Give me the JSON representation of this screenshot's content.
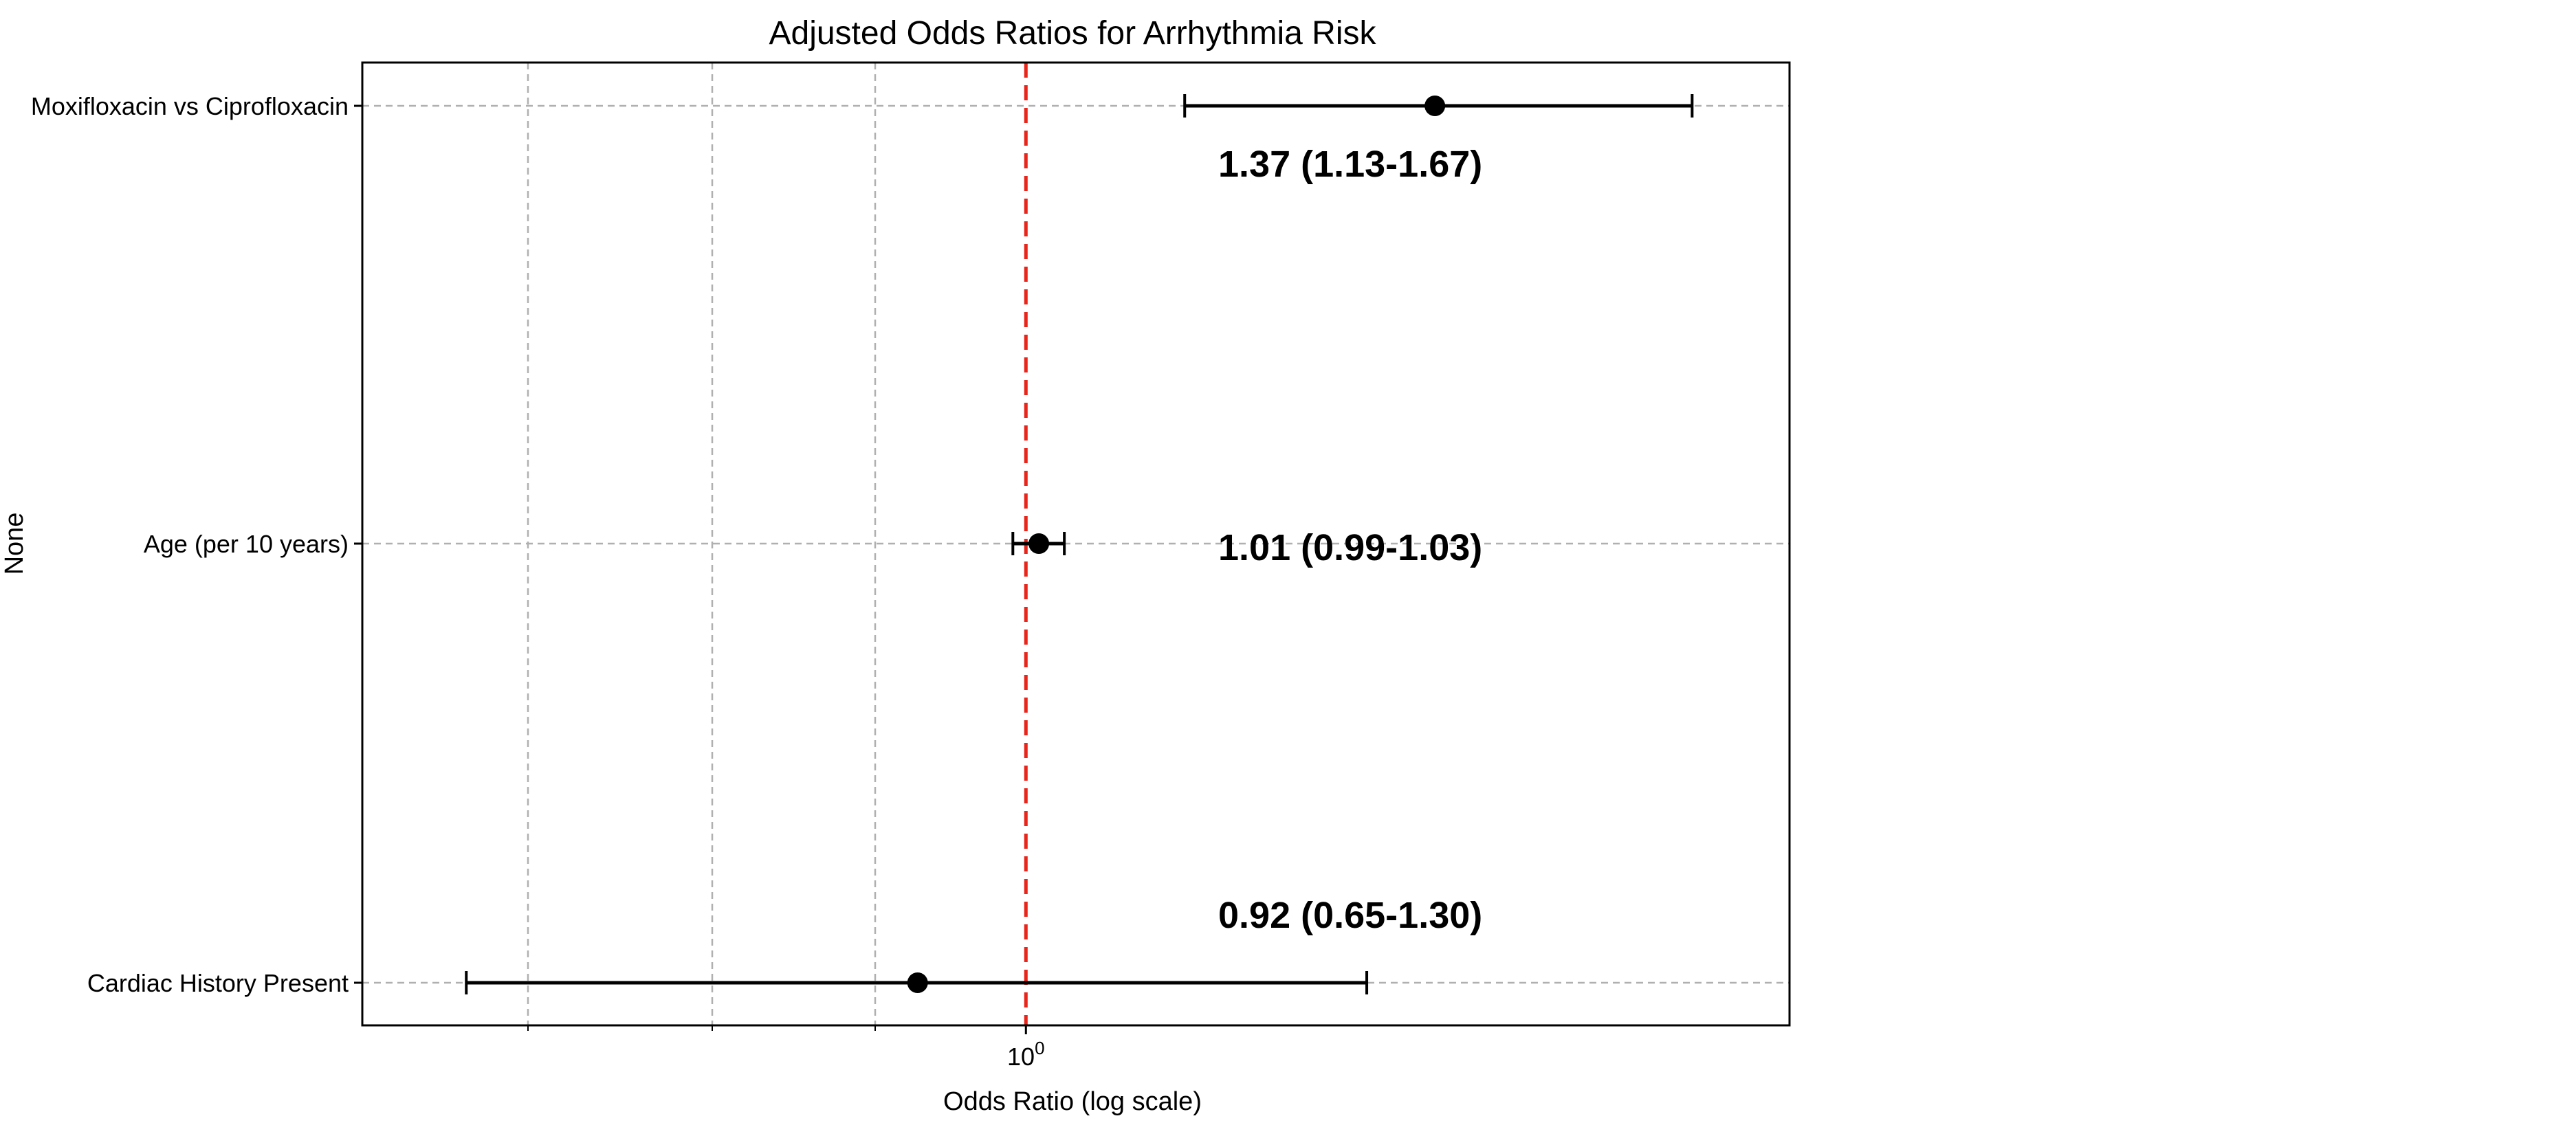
{
  "chart_data": {
    "type": "scatter",
    "subtype": "forest_plot",
    "title": "Adjusted Odds Ratios for Arrhythmia Risk",
    "xlabel": "Odds Ratio (log scale)",
    "ylabel": "None",
    "x_scale": "log",
    "x_ticks": [
      {
        "value": 1,
        "base": "10",
        "exponent": "0"
      }
    ],
    "xlim": [
      0.6,
      1.8
    ],
    "reference_line": {
      "x": 1,
      "style": "dashed",
      "color": "#e8251b"
    },
    "grid": true,
    "categories": [
      "Moxifloxacin vs Ciprofloxacin",
      "Age (per 10 years)",
      "Cardiac History Present"
    ],
    "series": [
      {
        "values": [
          1.37,
          1.01,
          0.92
        ],
        "ci_lower": [
          1.13,
          0.99,
          0.65
        ],
        "ci_upper": [
          1.67,
          1.03,
          1.3
        ]
      }
    ],
    "annotations": [
      "1.37 (1.13-1.67)",
      "1.01 (0.99-1.03)",
      "0.92 (0.65-1.30)"
    ],
    "colors": {
      "points": "#000000",
      "reference": "#e8251b",
      "grid": "#b0b0b0"
    }
  }
}
